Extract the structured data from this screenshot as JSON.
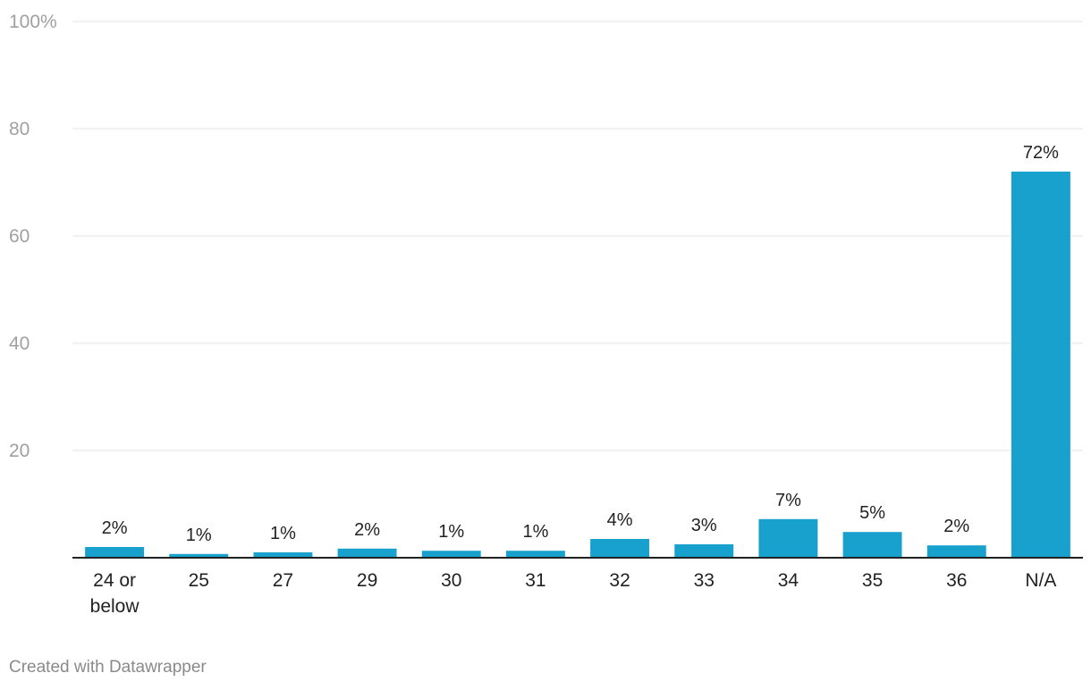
{
  "chart_data": {
    "type": "bar",
    "title": "",
    "xlabel": "",
    "ylabel": "",
    "ylim": [
      0,
      100
    ],
    "yticks": [
      {
        "value": 0,
        "label": ""
      },
      {
        "value": 20,
        "label": "20"
      },
      {
        "value": 40,
        "label": "40"
      },
      {
        "value": 60,
        "label": "60"
      },
      {
        "value": 80,
        "label": "80"
      },
      {
        "value": 100,
        "label": "100%"
      }
    ],
    "grid": true,
    "bar_color": "#18a1cd",
    "categories": [
      [
        "24 or",
        "below"
      ],
      [
        "25"
      ],
      [
        "27"
      ],
      [
        "29"
      ],
      [
        "30"
      ],
      [
        "31"
      ],
      [
        "32"
      ],
      [
        "33"
      ],
      [
        "34"
      ],
      [
        "35"
      ],
      [
        "36"
      ],
      [
        "N/A"
      ]
    ],
    "values": [
      2.0,
      0.7,
      1.0,
      1.7,
      1.3,
      1.3,
      3.5,
      2.5,
      7.2,
      4.8,
      2.3,
      72
    ],
    "data_labels": [
      "2%",
      "1%",
      "1%",
      "2%",
      "1%",
      "1%",
      "4%",
      "3%",
      "7%",
      "5%",
      "2%",
      "72%"
    ]
  },
  "footer": {
    "credit": "Created with Datawrapper"
  }
}
